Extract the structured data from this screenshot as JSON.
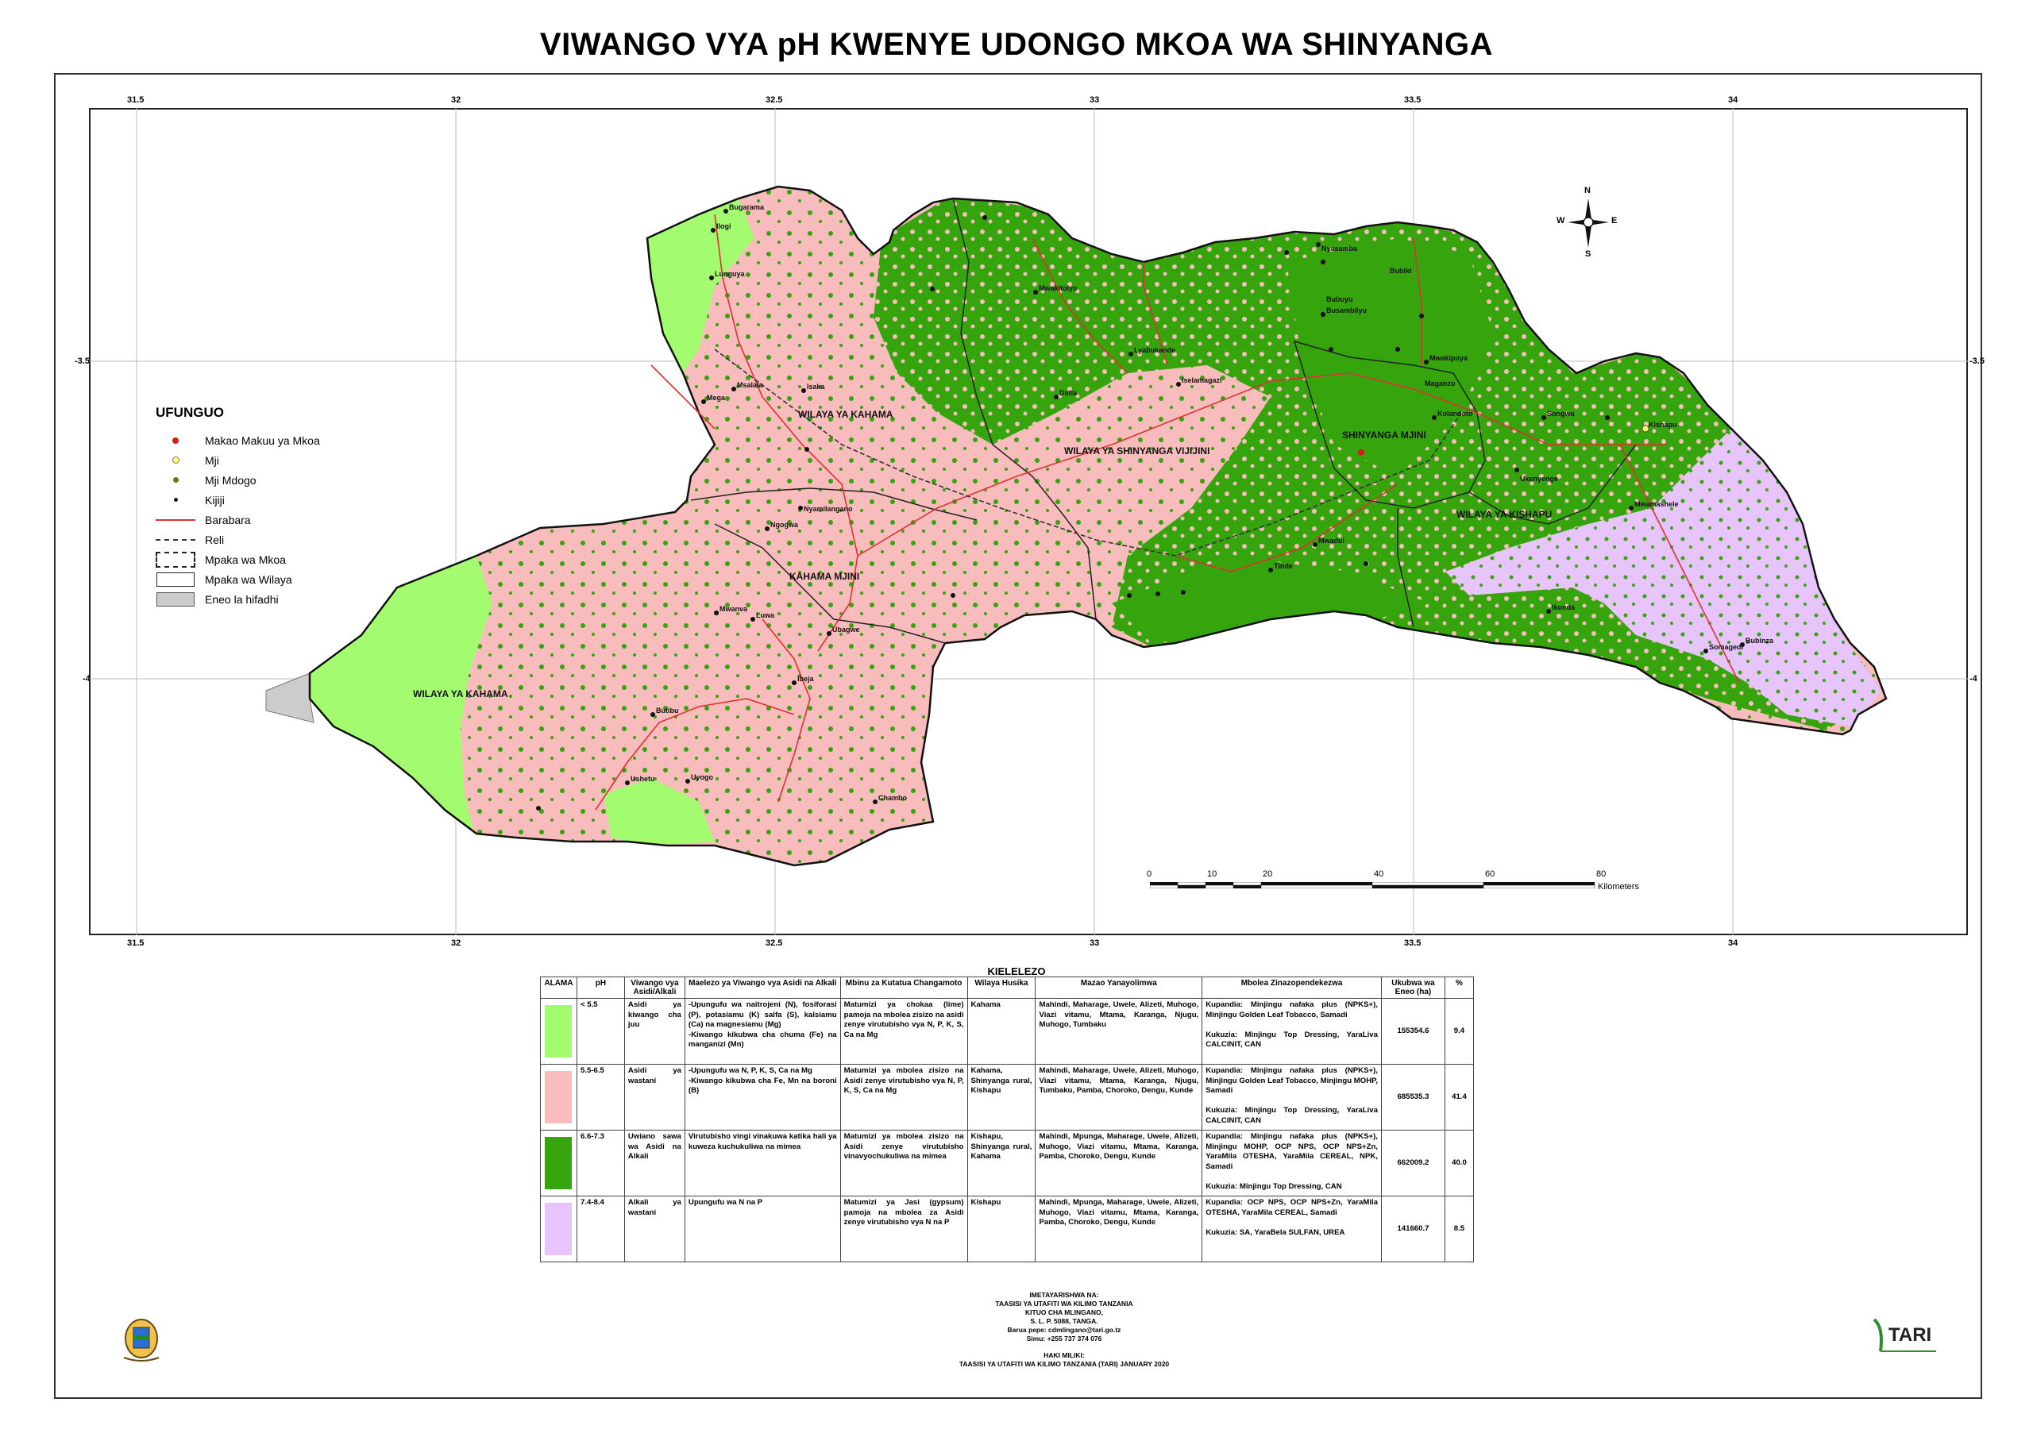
{
  "title": "VIWANGO VYA pH KWENYE UDONGO MKOA WA SHINYANGA",
  "map": {
    "grid_lon": [
      "31.5",
      "32",
      "32.5",
      "33",
      "33.5",
      "34"
    ],
    "grid_lat": [
      "-3.5",
      "-4"
    ],
    "districts": [
      "WILAYA YA KAHAMA",
      "WILAYA YA SHINYANGA VIJIJINI",
      "SHINYANGA MJINI",
      "WILAYA YA KISHAPU",
      "KAHAMA MJINI",
      "WILAYA YA KAHAMA"
    ],
    "places": [
      "Bugarama",
      "Ilogi",
      "Lunguya",
      "Msalala",
      "Mega",
      "Isaka",
      "Nyamilangano",
      "Ngogwa",
      "Mwanva",
      "Luwa",
      "Ubagwe",
      "Butibu",
      "Ushetu",
      "Uyogo",
      "Chambo",
      "Ibeja",
      "Nyasamba",
      "Bubiki",
      "Bubuyu",
      "Busambilyu",
      "Mwakitolyo",
      "Iselamagazi",
      "Tinde",
      "Mwadui",
      "Kishapu",
      "Maganzo",
      "Mwakipoya",
      "Kolandoto",
      "Didia",
      "Somagedi",
      "Bubinza",
      "Ukenyenge",
      "Mwamashele",
      "Songwa",
      "Ikonda",
      "Lyabukande"
    ]
  },
  "legend": {
    "title": "UFUNGUO",
    "items": [
      {
        "label": "Makao Makuu ya Mkoa",
        "icon": "red-dot-icon"
      },
      {
        "label": "Mji",
        "icon": "yellow-ring-icon"
      },
      {
        "label": "Mji Mdogo",
        "icon": "green-dot-icon"
      },
      {
        "label": "Kijiji",
        "icon": "black-dot-icon"
      },
      {
        "label": "Barabara",
        "icon": "road-line-icon"
      },
      {
        "label": "Reli",
        "icon": "railway-line-icon"
      },
      {
        "label": "Mpaka wa Mkoa",
        "icon": "region-boundary-icon"
      },
      {
        "label": "Mpaka wa Wilaya",
        "icon": "district-boundary-icon"
      },
      {
        "label": "Eneo la hifadhi",
        "icon": "reserve-area-icon"
      }
    ]
  },
  "scale": {
    "ticks": [
      "0",
      "10",
      "20",
      "40",
      "60",
      "80"
    ],
    "unit": "Kilometers"
  },
  "compass": {
    "n": "N",
    "s": "S",
    "e": "E",
    "w": "W"
  },
  "key": {
    "title": "KIELELEZO",
    "headers": [
      "ALAMA",
      "pH",
      "Viwango vya Asidi/Alkali",
      "Maelezo ya Viwango vya Asidi na Alkali",
      "Mbinu za Kutatua Changamoto",
      "Wilaya Husika",
      "Mazao Yanayolimwa",
      "Mbolea Zinazopendekezwa",
      "Ukubwa wa Eneo (ha)",
      "%"
    ],
    "rows": [
      {
        "color": "#a3fc6f",
        "ph": "< 5.5",
        "level": "Asidi ya kiwango cha juu",
        "description": "-Upungufu wa naitrojeni (N), fosiforasi (P), potasiamu (K) salfa (S), kalsiamu (Ca) na magnesiamu (Mg)\n-Kiwango kikubwa cha chuma (Fe) na manganizi (Mn)",
        "solution": "Matumizi ya chokaa (lime) pamoja na mbolea zisizo na asidi zenye virutubisho vya N, P, K, S, Ca na Mg",
        "districts": "Kahama",
        "crops": "Mahindi, Maharage, Uwele, Alizeti, Muhogo, Viazi vitamu, Mtama, Karanga, Njugu, Muhogo, Tumbaku",
        "fertilizer": "Kupandia: Minjingu nafaka plus (NPKS+), Minjingu Golden Leaf Tobacco, Samadi\n\nKukuzia: Minjingu Top Dressing, YaraLiva CALCINIT, CAN",
        "area": "155354.6",
        "percent": "9.4"
      },
      {
        "color": "#f9bcbc",
        "ph": "5.5-6.5",
        "level": "Asidi ya wastani",
        "description": "-Upungufu wa N, P, K, S, Ca na Mg\n-Kiwango kikubwa cha Fe, Mn na boroni (B)",
        "solution": "Matumizi ya mbolea zisizo na Asidi zenye virutubisho vya N, P, K, S, Ca na Mg",
        "districts": "Kahama, Shinyanga rural, Kishapu",
        "crops": "Mahindi, Maharage, Uwele, Alizeti, Muhogo, Viazi vitamu, Mtama, Karanga, Njugu, Tumbaku, Pamba, Choroko, Dengu, Kunde",
        "fertilizer": "Kupandia: Minjingu nafaka plus (NPKS+), Minjingu Golden Leaf Tobacco, Minjingu MOHP, Samadi\n\nKukuzia: Minjingu Top Dressing, YaraLiva CALCINIT, CAN",
        "area": "685535.3",
        "percent": "41.4"
      },
      {
        "color": "#35a40d",
        "ph": "6.6-7.3",
        "level": "Uwiano sawa wa Asidi na Alkali",
        "description": "Virutubisho vingi vinakuwa katika hali ya kuweza kuchukuliwa na mimea",
        "solution": "Matumizi ya mbolea zisizo na Asidi zenye virutubisho vinavyochukuliwa na mimea",
        "districts": "Kishapu, Shinyanga rural, Kahama",
        "crops": "Mahindi, Mpunga, Maharage, Uwele, Alizeti, Muhogo, Viazi vitamu, Mtama, Karanga, Pamba, Choroko, Dengu, Kunde",
        "fertilizer": "Kupandia: Minjingu nafaka plus (NPKS+), Minjingu MOHP, OCP NPS, OCP NPS+Zn, YaraMila OTESHA, YaraMila CEREAL, NPK, Samadi\n\nKukuzia: Minjingu Top Dressing, CAN",
        "area": "662009.2",
        "percent": "40.0"
      },
      {
        "color": "#e7c4fc",
        "ph": "7.4-8.4",
        "level": "Alkali ya wastani",
        "description": "Upungufu wa N na P",
        "solution": "Matumizi ya Jasi (gypsum) pamoja na mbolea za Asidi zenye virutubisho vya N na P",
        "districts": "Kishapu",
        "crops": "Mahindi, Mpunga, Maharage, Uwele, Alizeti, Muhogo, Viazi vitamu, Mtama, Karanga, Pamba, Choroko, Dengu, Kunde",
        "fertilizer": "Kupandia: OCP NPS, OCP NPS+Zn, YaraMila OTESHA, YaraMila CEREAL, Samadi\n\nKukuzia: SA, YaraBela SULFAN, UREA",
        "area": "141660.7",
        "percent": "8.5"
      }
    ]
  },
  "imprint": {
    "prepared_label": "IMETAYARISHWA NA:",
    "org": "TAASISI YA UTAFITI WA KILIMO TANZANIA",
    "center": "KITUO CHA MLINGANO,",
    "po_box": "S. L. P. 5088, TANGA.",
    "email": "Barua pepe: cdmlingano@tari.go.tz",
    "phone": "Simu: +255 737 374 076",
    "copyright_label": "HAKI MILIKI:",
    "copyright": "TAASISI YA UTAFITI WA KILIMO TANZANIA (TARI) JANUARY 2020"
  },
  "logos": {
    "left": "tanzania-coat-of-arms-icon",
    "right_text": "TARI"
  }
}
